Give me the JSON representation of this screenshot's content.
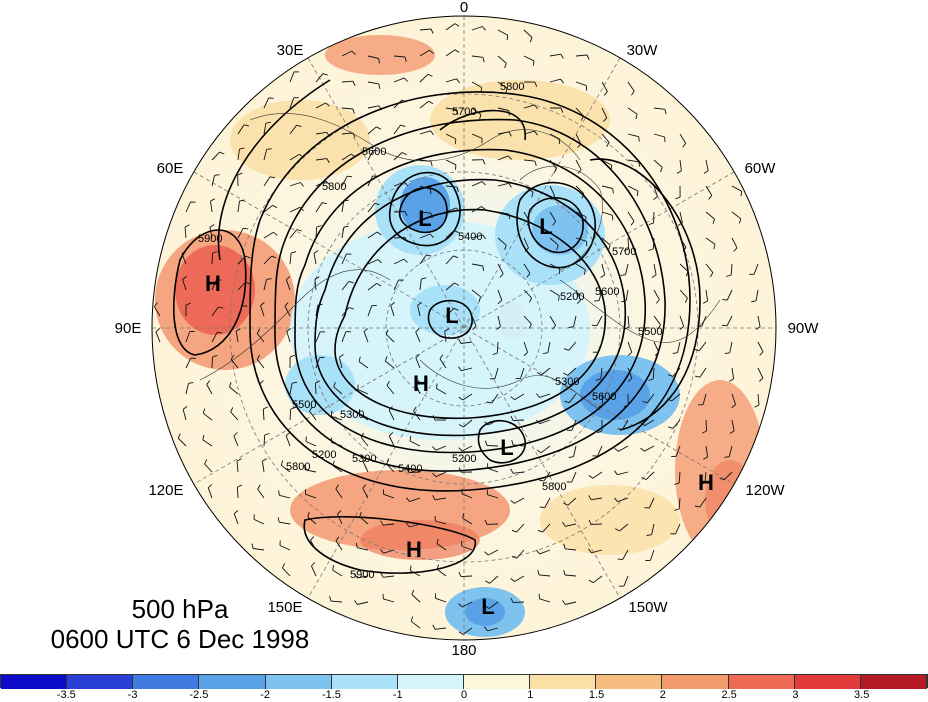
{
  "title": {
    "level": "500 hPa",
    "datetime": "0600 UTC 6 Dec 1998"
  },
  "longitude_labels": [
    "0",
    "30W",
    "60W",
    "90W",
    "120W",
    "150W",
    "180",
    "150E",
    "120E",
    "90E",
    "60E",
    "30E"
  ],
  "pressure_centers": [
    {
      "label": "H",
      "name": "high-center-east-asia"
    },
    {
      "label": "L",
      "name": "low-center-scandinavia"
    },
    {
      "label": "L",
      "name": "low-center-greenland"
    },
    {
      "label": "L",
      "name": "low-center-arctic"
    },
    {
      "label": "H",
      "name": "high-center-siberia"
    },
    {
      "label": "L",
      "name": "low-center-hudson"
    },
    {
      "label": "H",
      "name": "high-center-pacific"
    },
    {
      "label": "H",
      "name": "high-center-west-pacific"
    },
    {
      "label": "L",
      "name": "low-center-south-pacific"
    }
  ],
  "contour_labels": [
    "5800",
    "5700",
    "5600",
    "5400",
    "5900",
    "5800",
    "5700",
    "5600",
    "5200",
    "5500",
    "5300",
    "5500",
    "5600",
    "5300",
    "5200",
    "5400",
    "5300",
    "5800",
    "5200",
    "5800",
    "5900"
  ],
  "colorbar": {
    "colors": [
      "#0b0bc8",
      "#2a3fd6",
      "#3f7ae0",
      "#5aa2e8",
      "#7ec3f0",
      "#a9e1f8",
      "#d4f3fb",
      "#fdf6d8",
      "#fbe0a6",
      "#f7bd80",
      "#f29a6c",
      "#ee6a55",
      "#e23b3b",
      "#b51a26"
    ],
    "tick_labels": [
      "-3.5",
      "-3",
      "-2.5",
      "-2",
      "-1.5",
      "-1",
      "0",
      "1",
      "1.5",
      "2",
      "2.5",
      "3",
      "3.5"
    ]
  }
}
